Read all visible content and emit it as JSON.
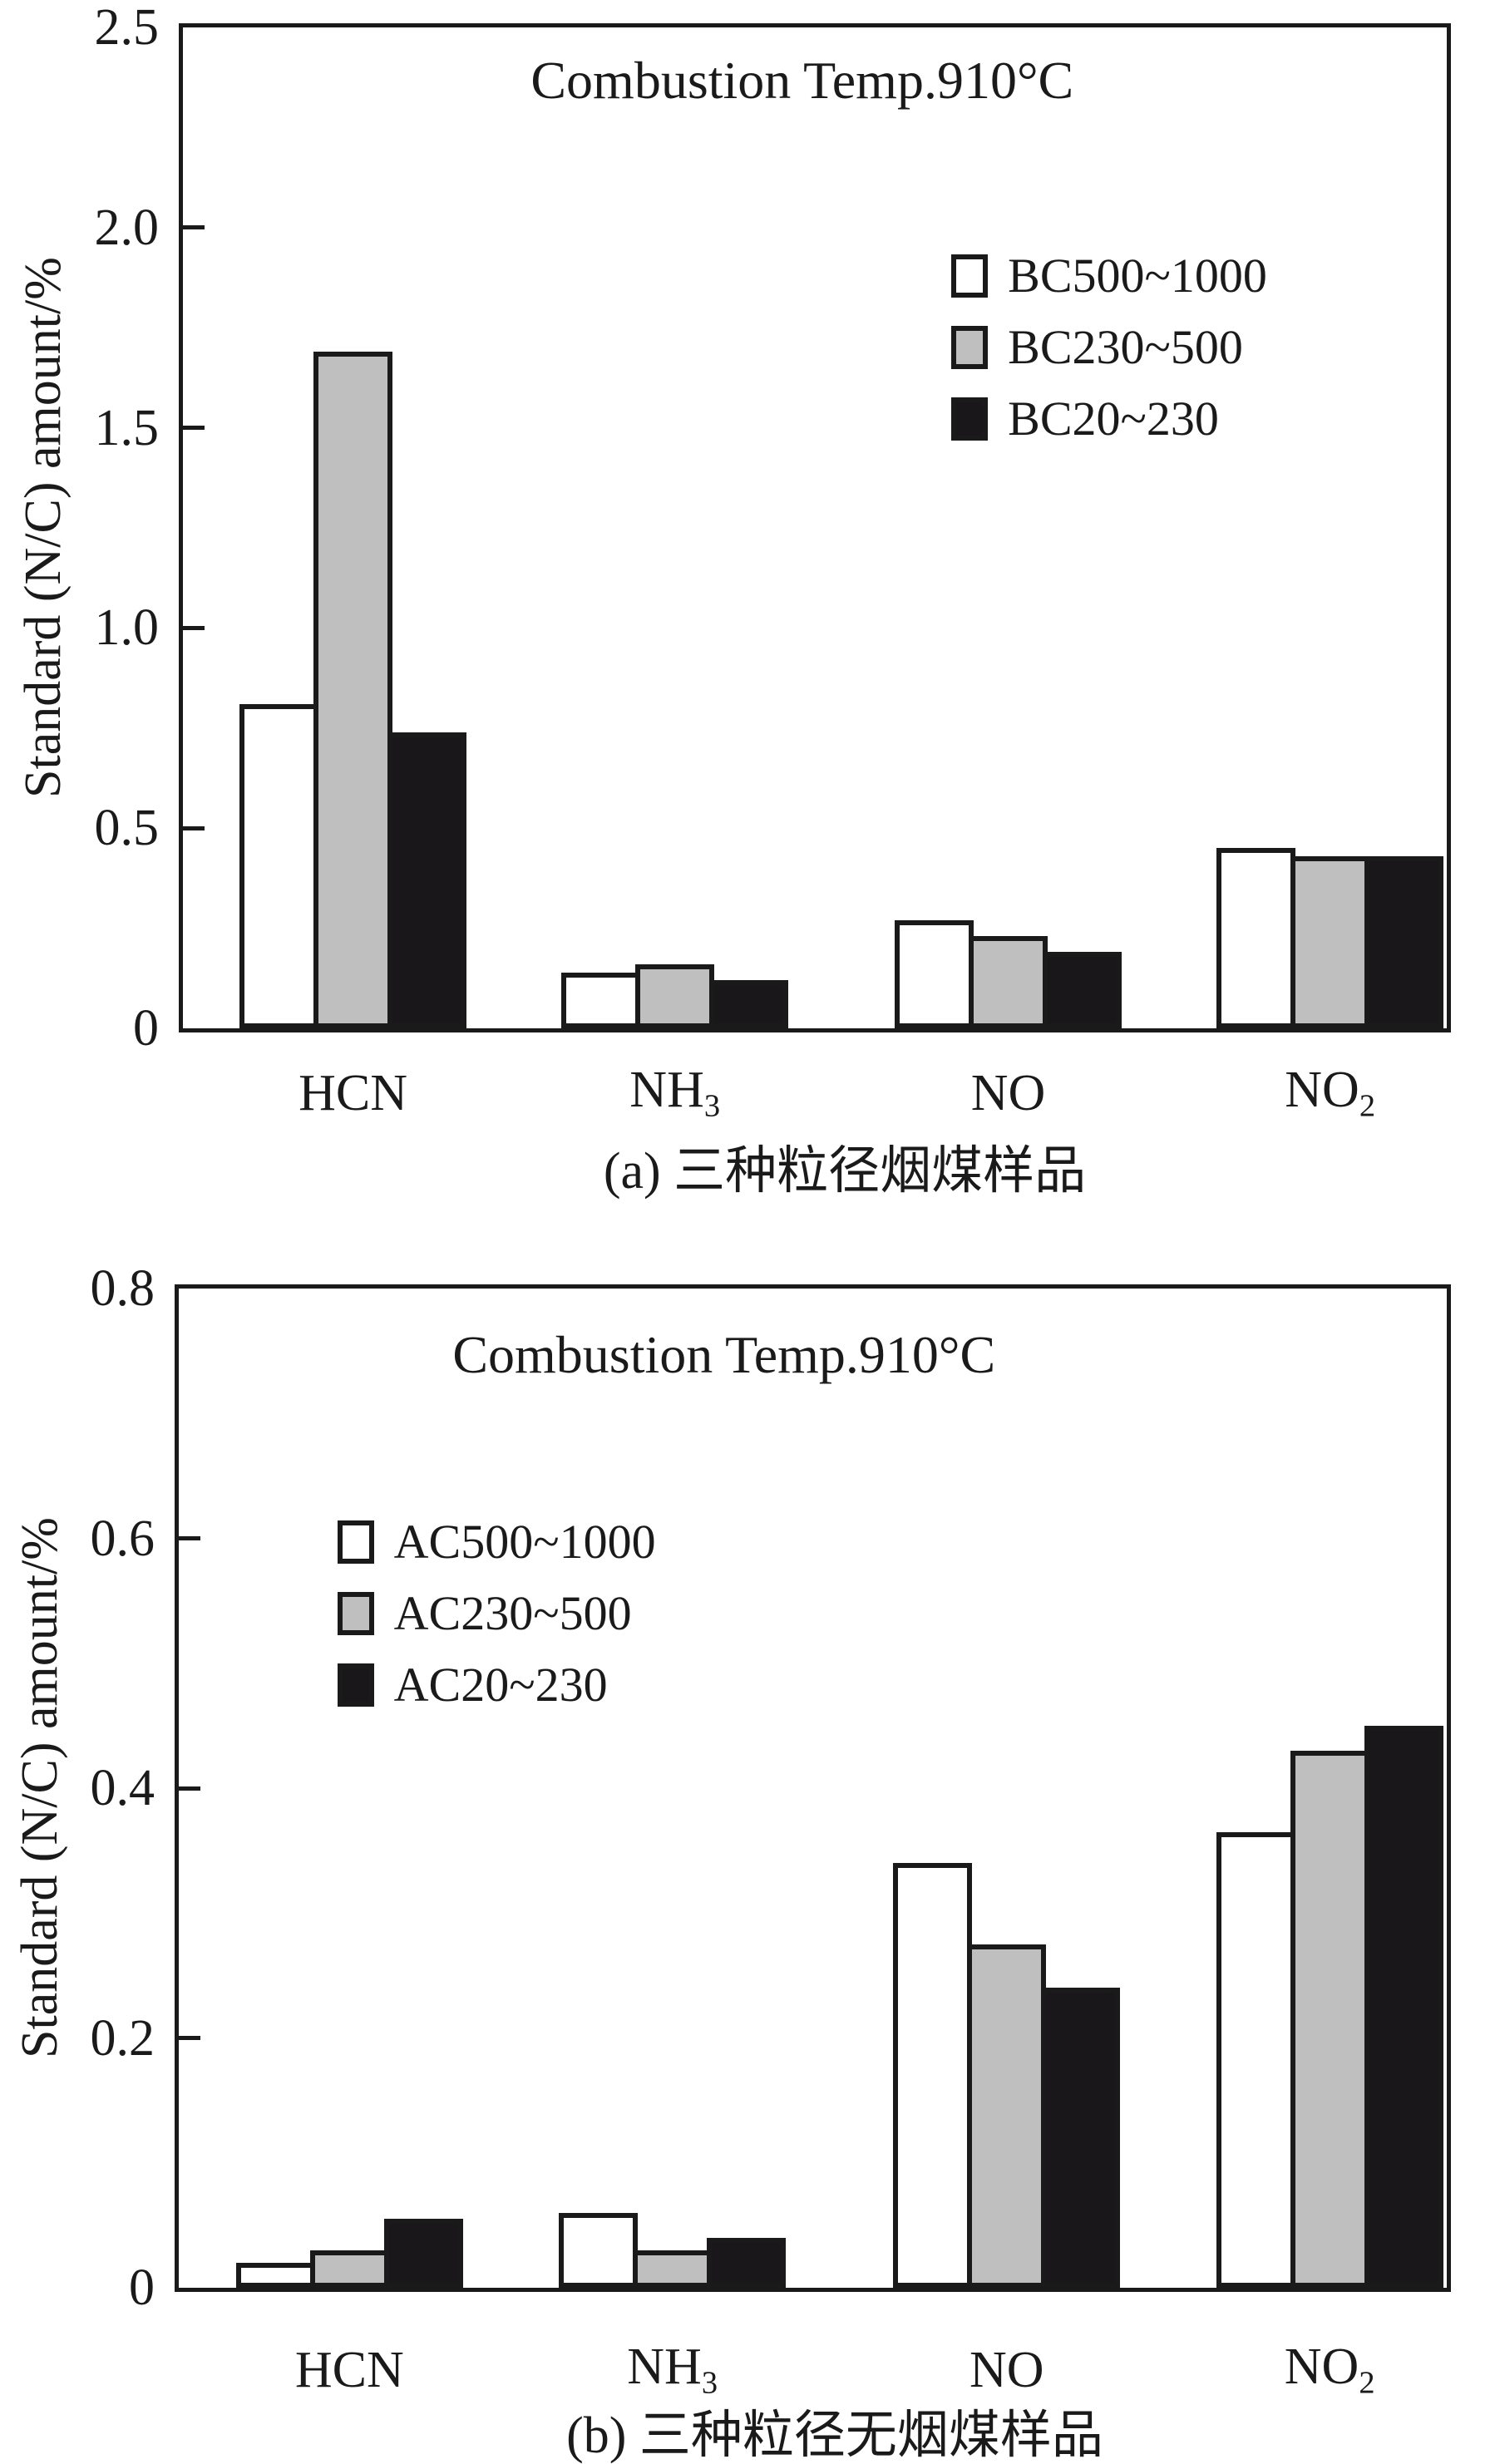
{
  "figure": {
    "background": "#ffffff",
    "ink": "#1a1a1a",
    "panels": 2
  },
  "chart_data": [
    {
      "panel": "a",
      "type": "bar",
      "title": "Combustion Temp.910°C",
      "ylabel": "Standard (N/C) amount/%",
      "caption": "(a) 三种粒径烟煤样品",
      "ylim": [
        0,
        2.5
      ],
      "ytick_labels": [
        "2.5",
        "2.0",
        "1.5",
        "1.0",
        "0.5",
        "0"
      ],
      "ytick_values": [
        2.5,
        2.0,
        1.5,
        1.0,
        0.5,
        0
      ],
      "categories": [
        {
          "main": "HCN",
          "sub": ""
        },
        {
          "main": "NH",
          "sub": "3"
        },
        {
          "main": "NO",
          "sub": ""
        },
        {
          "main": "NO",
          "sub": "2"
        }
      ],
      "series": [
        {
          "name": "BC500~1000",
          "fill": "#ffffff",
          "values": [
            0.81,
            0.14,
            0.27,
            0.45
          ]
        },
        {
          "name": "BC230~500",
          "fill": "#bfbfbf",
          "values": [
            1.69,
            0.16,
            0.23,
            0.43
          ]
        },
        {
          "name": "BC20~230",
          "fill": "#191719",
          "values": [
            0.74,
            0.12,
            0.19,
            0.43
          ]
        }
      ],
      "legend_position": "upper-right",
      "grid": false
    },
    {
      "panel": "b",
      "type": "bar",
      "title": "Combustion Temp.910°C",
      "ylabel": "Standard (N/C) amount/%",
      "caption": "(b) 三种粒径无烟煤样品",
      "ylim": [
        0,
        0.8
      ],
      "ytick_labels": [
        "0.8",
        "0.6",
        "0.4",
        "0.2",
        "0"
      ],
      "ytick_values": [
        0.8,
        0.6,
        0.4,
        0.2,
        0
      ],
      "categories": [
        {
          "main": "HCN",
          "sub": ""
        },
        {
          "main": "NH",
          "sub": "3"
        },
        {
          "main": "NO",
          "sub": ""
        },
        {
          "main": "NO",
          "sub": "2"
        }
      ],
      "series": [
        {
          "name": "AC500~1000",
          "fill": "#ffffff",
          "values": [
            0.02,
            0.06,
            0.34,
            0.365
          ]
        },
        {
          "name": "AC230~500",
          "fill": "#bfbfbf",
          "values": [
            0.03,
            0.03,
            0.275,
            0.43
          ]
        },
        {
          "name": "AC20~230",
          "fill": "#191719",
          "values": [
            0.055,
            0.04,
            0.24,
            0.45
          ]
        }
      ],
      "legend_position": "center-left",
      "grid": false
    }
  ]
}
